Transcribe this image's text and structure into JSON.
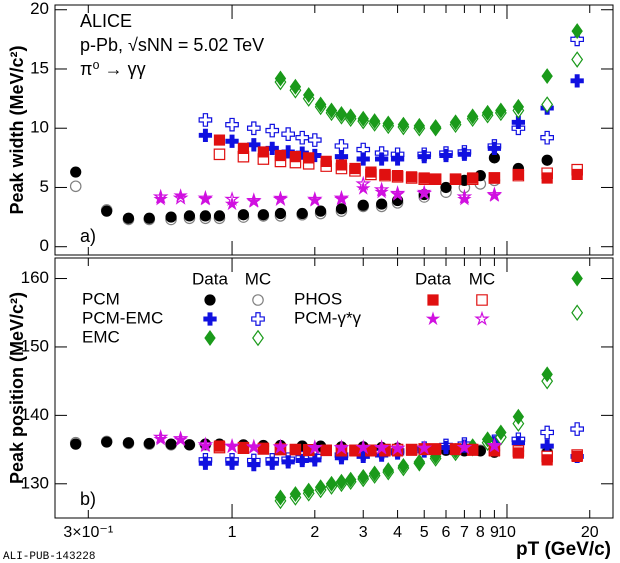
{
  "chart_data": [
    {
      "type": "scatter",
      "annotations": [
        "ALICE",
        "p-Pb, √sNN = 5.02 TeV",
        "π⁰ → γγ"
      ],
      "panel_label": "a)",
      "ylabel": "Peak width (MeV/c²)",
      "xlim": [
        0.227,
        24.3
      ],
      "xticks": [
        0.3,
        1,
        2,
        3,
        4,
        5,
        6,
        7,
        8,
        9,
        10,
        20
      ],
      "ylim": [
        -0.7,
        20.4
      ],
      "yticks": [
        0,
        5,
        10,
        15,
        20
      ],
      "series": [
        {
          "color": "#000000",
          "mc_color": "#808080",
          "marker": "circle",
          "x": [
            0.27,
            0.35,
            0.42,
            0.5,
            0.6,
            0.7,
            0.8,
            0.9,
            1.1,
            1.3,
            1.5,
            1.8,
            2.1,
            2.5,
            3.0,
            3.5,
            4.0,
            5.0,
            6.0,
            7.0,
            8.0,
            9.0,
            11,
            14
          ],
          "values": [
            6.3,
            3.0,
            2.4,
            2.4,
            2.5,
            2.6,
            2.6,
            2.6,
            2.7,
            2.7,
            2.8,
            2.8,
            3.0,
            3.2,
            3.5,
            3.6,
            3.9,
            4.4,
            5.0,
            5.6,
            6.0,
            7.5,
            6.6,
            7.3
          ],
          "mc_values": [
            5.1,
            3.1,
            2.3,
            2.3,
            2.3,
            2.4,
            2.4,
            2.4,
            2.5,
            2.6,
            2.6,
            2.7,
            2.8,
            3.0,
            3.4,
            3.4,
            3.7,
            4.2,
            4.6,
            5.0,
            5.3,
            5.6,
            6.5,
            6.1
          ]
        },
        {
          "color": "#1010e0",
          "mc_color": "#1010e0",
          "marker": "cross",
          "x": [
            0.8,
            1.0,
            1.2,
            1.4,
            1.6,
            1.8,
            2.0,
            2.5,
            3.0,
            3.5,
            4.0,
            5.0,
            6.0,
            7.0,
            9.0,
            11,
            14,
            18
          ],
          "values": [
            9.4,
            8.9,
            8.6,
            8.3,
            8.0,
            7.9,
            7.7,
            7.6,
            7.4,
            7.4,
            7.4,
            7.6,
            7.7,
            7.8,
            8.3,
            10.5,
            11.7,
            14.0
          ],
          "mc_values": [
            10.7,
            10.3,
            10.0,
            9.8,
            9.5,
            9.2,
            9.0,
            8.5,
            8.2,
            7.9,
            7.8,
            7.8,
            7.9,
            8.0,
            8.5,
            10.0,
            9.2,
            17.5
          ]
        },
        {
          "color": "#1a9a1a",
          "mc_color": "#1a9a1a",
          "marker": "diamond",
          "x": [
            1.5,
            1.7,
            1.9,
            2.1,
            2.3,
            2.5,
            2.7,
            3.0,
            3.3,
            3.7,
            4.2,
            4.8,
            5.5,
            6.5,
            7.5,
            8.5,
            9.5,
            11,
            14,
            18
          ],
          "values": [
            14.2,
            13.5,
            12.8,
            12.0,
            11.5,
            11.2,
            11.0,
            10.8,
            10.6,
            10.4,
            10.3,
            10.2,
            10.1,
            10.5,
            11.0,
            11.3,
            11.5,
            11.8,
            14.4,
            18.2
          ],
          "mc_values": [
            13.9,
            13.2,
            12.5,
            11.8,
            11.3,
            11.0,
            10.8,
            10.6,
            10.4,
            10.2,
            10.1,
            10.0,
            10.0,
            10.3,
            10.8,
            11.1,
            11.3,
            11.5,
            12.0,
            15.8
          ]
        },
        {
          "color": "#e01010",
          "mc_color": "#e01010",
          "marker": "square",
          "x": [
            0.9,
            1.1,
            1.3,
            1.5,
            1.7,
            1.9,
            2.2,
            2.5,
            2.8,
            3.2,
            3.6,
            4.0,
            4.5,
            5.0,
            5.5,
            6.5,
            7.5,
            9.0,
            11,
            14,
            18
          ],
          "values": [
            9.0,
            8.3,
            8.0,
            7.7,
            7.6,
            7.5,
            7.2,
            6.9,
            6.6,
            6.3,
            6.1,
            6.0,
            5.9,
            5.8,
            5.7,
            5.7,
            5.8,
            5.8,
            6.1,
            5.8,
            6.1
          ],
          "mc_values": [
            7.8,
            7.6,
            7.4,
            7.2,
            7.1,
            7.0,
            6.8,
            6.6,
            6.4,
            6.1,
            6.0,
            5.9,
            5.8,
            5.7,
            5.7,
            5.7,
            5.7,
            5.8,
            6.0,
            6.2,
            6.5
          ]
        },
        {
          "color": "#d010e0",
          "mc_color": "#d010e0",
          "marker": "star",
          "x": [
            0.55,
            0.65,
            0.8,
            1.0,
            1.2,
            1.5,
            2.0,
            2.5,
            3.0,
            3.5,
            4.0,
            5.0,
            7.0,
            9.0
          ],
          "values": [
            4.0,
            4.3,
            4.0,
            3.6,
            3.8,
            4.1,
            3.9,
            4.0,
            4.9,
            4.6,
            4.4,
            4.6,
            4.0,
            4.3
          ],
          "mc_values": [
            4.2,
            4.1,
            4.1,
            4.0,
            3.9,
            4.0,
            4.0,
            4.1,
            5.3,
            4.8,
            4.5,
            4.5,
            4.2,
            4.4
          ]
        }
      ]
    },
    {
      "type": "scatter",
      "panel_label": "b)",
      "ylabel": "Peak position (MeV/c²)",
      "xlabel": "pT (GeV/c)",
      "footer": "ALI-PUB-143228",
      "legend_headers": [
        "Data",
        "MC"
      ],
      "xlim": [
        0.227,
        24.3
      ],
      "xticks": [
        {
          "value": 0.3,
          "label": "3×10⁻¹"
        },
        1,
        2,
        3,
        4,
        5,
        6,
        7,
        8,
        9,
        10,
        20
      ],
      "ylim": [
        125,
        163
      ],
      "yticks": [
        130,
        140,
        150,
        160
      ],
      "series": [
        {
          "name": "PCM",
          "color": "#000000",
          "mc_color": "#808080",
          "marker": "circle",
          "x": [
            0.27,
            0.35,
            0.42,
            0.5,
            0.6,
            0.7,
            0.8,
            0.9,
            1.1,
            1.3,
            1.5,
            1.8,
            2.1,
            2.5,
            3.0,
            3.5,
            4.0,
            5.0,
            6.0,
            7.0,
            8.0,
            9.0,
            11,
            14
          ],
          "values": [
            135.8,
            136.1,
            136.0,
            135.9,
            135.8,
            135.7,
            135.8,
            135.8,
            135.7,
            135.6,
            135.6,
            135.5,
            135.5,
            135.4,
            135.4,
            135.3,
            135.2,
            135.1,
            134.9,
            134.8,
            134.8,
            134.6,
            134.6,
            134.5
          ],
          "mc_values": [
            136.0,
            136.2,
            135.9,
            135.8,
            135.7,
            135.7,
            135.7,
            135.6,
            135.6,
            135.5,
            135.5,
            135.5,
            135.4,
            135.3,
            135.3,
            135.2,
            135.2,
            135.0,
            135.0,
            135.0,
            134.9,
            134.9,
            134.8,
            134.7
          ]
        },
        {
          "name": "PCM-EMC",
          "color": "#1010e0",
          "mc_color": "#1010e0",
          "marker": "cross",
          "x": [
            0.8,
            1.0,
            1.2,
            1.4,
            1.6,
            1.8,
            2.0,
            2.5,
            3.0,
            3.5,
            4.0,
            5.0,
            6.0,
            7.0,
            9.0,
            11,
            14,
            18
          ],
          "values": [
            133.0,
            133.0,
            132.8,
            133.0,
            133.2,
            133.4,
            133.5,
            133.8,
            134.0,
            134.2,
            134.5,
            134.8,
            135.3,
            135.5,
            136.0,
            136.0,
            135.5,
            134.0
          ],
          "mc_values": [
            133.5,
            133.5,
            133.4,
            133.5,
            133.6,
            133.8,
            134.0,
            134.2,
            134.4,
            134.6,
            134.8,
            135.2,
            135.6,
            135.8,
            136.2,
            136.5,
            137.5,
            138.0
          ]
        },
        {
          "name": "EMC",
          "color": "#1a9a1a",
          "mc_color": "#1a9a1a",
          "marker": "diamond",
          "x": [
            1.5,
            1.7,
            1.9,
            2.1,
            2.3,
            2.5,
            2.7,
            3.0,
            3.3,
            3.7,
            4.2,
            4.8,
            5.5,
            6.5,
            7.5,
            8.5,
            9.5,
            11,
            14,
            18
          ],
          "values": [
            128.0,
            128.5,
            129.0,
            129.5,
            130.0,
            130.3,
            130.6,
            131.0,
            131.5,
            132.0,
            132.6,
            133.2,
            134.0,
            134.8,
            135.5,
            136.5,
            137.5,
            139.8,
            146.0,
            160.0
          ],
          "mc_values": [
            127.5,
            128.0,
            128.6,
            129.1,
            129.6,
            130.0,
            130.3,
            130.7,
            131.2,
            131.7,
            132.3,
            133.0,
            133.7,
            134.5,
            135.2,
            136.0,
            136.8,
            138.8,
            145.0,
            155.0
          ]
        },
        {
          "name": "PHOS",
          "color": "#e01010",
          "mc_color": "#e01010",
          "marker": "square",
          "x": [
            0.9,
            1.1,
            1.3,
            1.5,
            1.7,
            1.9,
            2.2,
            2.5,
            2.8,
            3.2,
            3.6,
            4.0,
            4.5,
            5.0,
            5.5,
            6.5,
            7.5,
            9.0,
            11,
            14,
            18
          ],
          "values": [
            135.5,
            135.3,
            135.2,
            135.1,
            135.0,
            135.0,
            134.9,
            134.8,
            134.8,
            134.8,
            134.8,
            134.8,
            134.9,
            135.0,
            135.0,
            135.0,
            134.9,
            134.8,
            134.5,
            133.5,
            134.0
          ],
          "mc_values": [
            135.3,
            135.2,
            135.1,
            135.0,
            135.0,
            134.9,
            134.9,
            134.9,
            134.9,
            134.9,
            135.0,
            135.0,
            135.0,
            135.1,
            135.1,
            135.1,
            135.0,
            134.9,
            134.8,
            134.0,
            134.2
          ]
        },
        {
          "name": "PCM-γ*γ",
          "color": "#d010e0",
          "mc_color": "#d010e0",
          "marker": "star",
          "x": [
            0.55,
            0.65,
            0.8,
            1.0,
            1.2,
            1.5,
            2.0,
            2.5,
            3.0,
            3.5,
            4.0,
            5.0,
            7.0,
            9.0
          ],
          "values": [
            136.5,
            136.4,
            135.5,
            135.4,
            135.3,
            135.3,
            135.2,
            135.2,
            135.3,
            135.2,
            135.1,
            135.2,
            135.3,
            135.5
          ],
          "mc_values": [
            136.8,
            136.6,
            135.7,
            135.5,
            135.4,
            135.4,
            135.3,
            135.3,
            135.3,
            135.3,
            135.2,
            135.2,
            135.3,
            135.6
          ]
        }
      ]
    }
  ]
}
